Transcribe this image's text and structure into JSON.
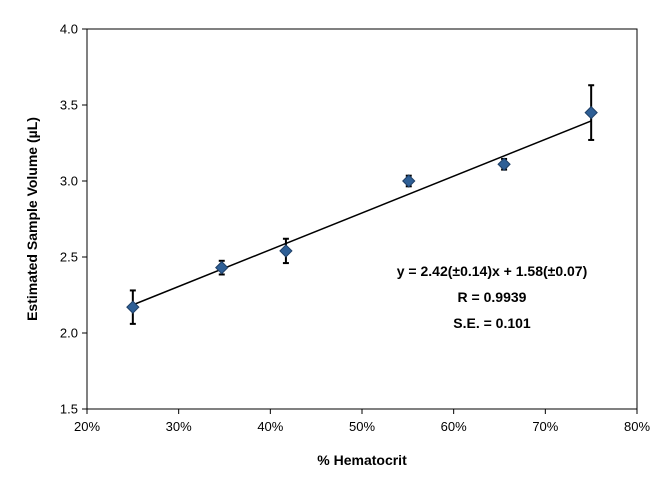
{
  "chart_data": {
    "type": "scatter",
    "xlabel": "% Hematocrit",
    "ylabel": "Estimated Sample Volume (µL)",
    "xlim": [
      0.2,
      0.8
    ],
    "ylim": [
      1.5,
      4.0
    ],
    "x_ticks": [
      0.2,
      0.3,
      0.4,
      0.5,
      0.6,
      0.7,
      0.8
    ],
    "x_tick_labels": [
      "20%",
      "30%",
      "40%",
      "50%",
      "60%",
      "70%",
      "80%"
    ],
    "y_ticks": [
      1.5,
      2.0,
      2.5,
      3.0,
      3.5,
      4.0
    ],
    "y_tick_labels": [
      "1.5",
      "2.0",
      "2.5",
      "3.0",
      "3.5",
      "4.0"
    ],
    "grid": false,
    "colors": {
      "marker": "#2e5f96",
      "marker_edge": "#1f3f66",
      "line": "#000000",
      "error_bar": "#000000"
    },
    "points": [
      {
        "x": 0.25,
        "y": 2.17,
        "err": 0.11
      },
      {
        "x": 0.347,
        "y": 2.43,
        "err": 0.045
      },
      {
        "x": 0.417,
        "y": 2.54,
        "err": 0.08
      },
      {
        "x": 0.551,
        "y": 3.0,
        "err": 0.035
      },
      {
        "x": 0.655,
        "y": 3.11,
        "err": 0.035
      },
      {
        "x": 0.75,
        "y": 3.45,
        "err": 0.18
      }
    ],
    "fit": {
      "slope": 2.42,
      "intercept": 1.58,
      "x_range": [
        0.25,
        0.75
      ]
    },
    "annotation": [
      "y = 2.42(±0.14)x + 1.58(±0.07)",
      "R = 0.9939",
      "S.E. = 0.101"
    ]
  }
}
